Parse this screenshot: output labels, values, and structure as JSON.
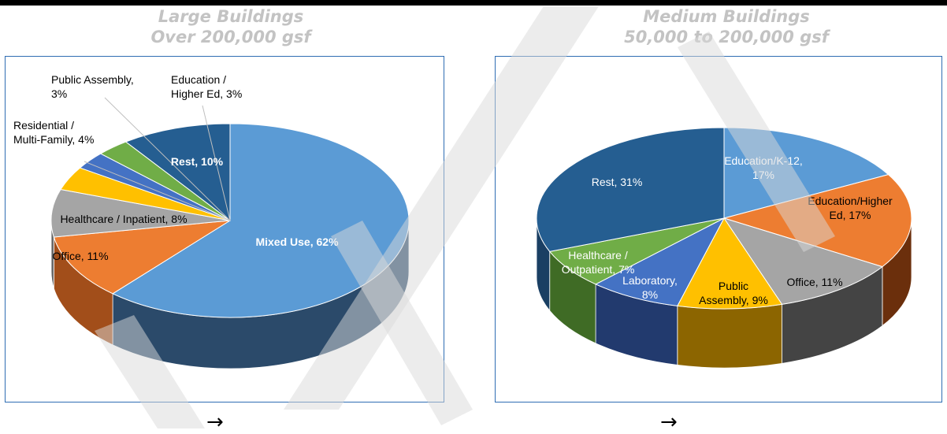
{
  "chart_data": [
    {
      "type": "pie",
      "title": "Large Buildings",
      "subtitle": "Over 200,000 gsf",
      "slices": [
        {
          "label": "Mixed Use",
          "value": 62,
          "color": "#5b9bd5",
          "side": "#2b4a6a"
        },
        {
          "label": "Office",
          "value": 11,
          "color": "#ed7d31",
          "side": "#a24e1a"
        },
        {
          "label": "Healthcare / Inpatient",
          "value": 8,
          "color": "#a5a5a5",
          "side": "#646464"
        },
        {
          "label": "Residential / Multi-Family",
          "value": 4,
          "color": "#ffc000",
          "side": "#a67c00"
        },
        {
          "label": "Public Assembly",
          "value": 3,
          "color": "#4472c4",
          "side": "#2a4a84"
        },
        {
          "label": "Education / Higher Ed",
          "value": 3,
          "color": "#70ad47",
          "side": "#4a7a2d"
        },
        {
          "label": "Rest",
          "value": 10,
          "color": "#255e91",
          "side": "#163a5c"
        }
      ],
      "data_labels": [
        {
          "lines": [
            "Mixed Use, 62%"
          ],
          "bold": true,
          "color": "#ffffff"
        },
        {
          "lines": [
            "Office, 11%"
          ],
          "bold": false,
          "color": "#000000"
        },
        {
          "lines": [
            "Healthcare / Inpatient, 8%"
          ],
          "bold": false,
          "color": "#000000"
        },
        {
          "lines": [
            "Residential /",
            "Multi-Family, 4%"
          ],
          "bold": false,
          "color": "#000000"
        },
        {
          "lines": [
            "Public Assembly,",
            "3%"
          ],
          "bold": false,
          "color": "#000000"
        },
        {
          "lines": [
            "Education /",
            "Higher Ed, 3%"
          ],
          "bold": false,
          "color": "#000000"
        },
        {
          "lines": [
            "Rest, 10%"
          ],
          "bold": true,
          "color": "#ffffff"
        }
      ]
    },
    {
      "type": "pie",
      "title": "Medium Buildings",
      "subtitle": "50,000 to 200,000 gsf",
      "slices": [
        {
          "label": "Education/K-12",
          "value": 17,
          "color": "#5b9bd5",
          "side": "#2e5f8c"
        },
        {
          "label": "Education/Higher Ed",
          "value": 17,
          "color": "#ed7d31",
          "side": "#6b2f0c"
        },
        {
          "label": "Office",
          "value": 11,
          "color": "#a5a5a5",
          "side": "#444444"
        },
        {
          "label": "Public Assembly",
          "value": 9,
          "color": "#ffc000",
          "side": "#8c6500"
        },
        {
          "label": "Laboratory",
          "value": 8,
          "color": "#4472c4",
          "side": "#223a6e"
        },
        {
          "label": "Healthcare / Outpatient",
          "value": 7,
          "color": "#70ad47",
          "side": "#3f6b25"
        },
        {
          "label": "Rest",
          "value": 31,
          "color": "#255e91",
          "side": "#1a3f63"
        }
      ],
      "data_labels": [
        {
          "lines": [
            "Education/K-12,",
            "17%"
          ],
          "bold": false,
          "color": "#ffffff"
        },
        {
          "lines": [
            "Education/Higher",
            "Ed, 17%"
          ],
          "bold": false,
          "color": "#000000"
        },
        {
          "lines": [
            "Office, 11%"
          ],
          "bold": false,
          "color": "#000000"
        },
        {
          "lines": [
            "Public",
            "Assembly, 9%"
          ],
          "bold": false,
          "color": "#000000"
        },
        {
          "lines": [
            "Laboratory,",
            "8%"
          ],
          "bold": false,
          "color": "#ffffff"
        },
        {
          "lines": [
            "Healthcare /",
            "Outpatient, 7%"
          ],
          "bold": false,
          "color": "#ffffff"
        },
        {
          "lines": [
            "Rest, 31%"
          ],
          "bold": false,
          "color": "#ffffff"
        }
      ]
    }
  ],
  "arrows": [
    "→",
    "→"
  ]
}
